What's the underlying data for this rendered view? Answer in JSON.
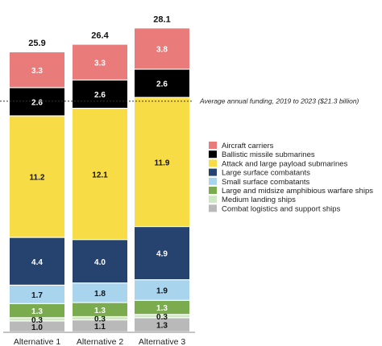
{
  "chart_data": {
    "type": "bar",
    "stacked": true,
    "categories": [
      "Alternative 1",
      "Alternative 2",
      "Alternative 3"
    ],
    "series": [
      {
        "name": "Combat logistics and support ships",
        "color": "#b9b9b9",
        "values": [
          1.0,
          1.1,
          1.3
        ]
      },
      {
        "name": "Medium landing ships",
        "color": "#cfe8c4",
        "values": [
          0.3,
          0.3,
          0.3
        ]
      },
      {
        "name": "Large and midsize amphibious warfare ships",
        "color": "#7aab4f",
        "values": [
          1.3,
          1.3,
          1.3
        ]
      },
      {
        "name": "Small surface combatants",
        "color": "#a8d4ee",
        "values": [
          1.7,
          1.8,
          1.9
        ]
      },
      {
        "name": "Large surface combatants",
        "color": "#26436f",
        "values": [
          4.4,
          4.0,
          4.9
        ]
      },
      {
        "name": "Attack and large payload submarines",
        "color": "#f7dc45",
        "values": [
          11.2,
          12.1,
          11.9
        ]
      },
      {
        "name": "Ballistic missile submarines",
        "color": "#000000",
        "values": [
          2.6,
          2.6,
          2.6
        ]
      },
      {
        "name": "Aircraft carriers",
        "color": "#e97b7b",
        "values": [
          3.3,
          3.3,
          3.8
        ]
      }
    ],
    "totals": [
      "25.9",
      "26.4",
      "28.1"
    ],
    "segment_labels": [
      [
        "1.0",
        "0.3",
        "1.3",
        "1.7",
        "4.4",
        "11.2",
        "2.6",
        "3.3"
      ],
      [
        "1.1",
        "0.3",
        "1.3",
        "1.8",
        "4.0",
        "12.1",
        "2.6",
        "3.3"
      ],
      [
        "1.3",
        "0.3",
        "1.3",
        "1.9",
        "4.9",
        "11.9",
        "2.6",
        "3.8"
      ]
    ],
    "reference_line": {
      "value": 21.3,
      "label": "Average annual funding, 2019 to 2023 ($21.3 billion)"
    },
    "legend_order": [
      7,
      6,
      5,
      4,
      3,
      2,
      1,
      0
    ],
    "legend_position": "right",
    "ylim": [
      0,
      28.1
    ],
    "grid": false
  }
}
